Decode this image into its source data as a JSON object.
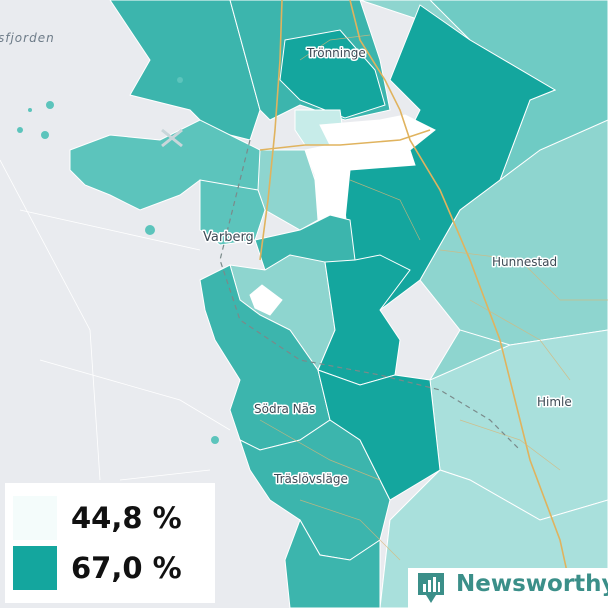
{
  "map": {
    "places": [
      {
        "id": "fjorden",
        "label": "sfjorden"
      },
      {
        "id": "tronninge",
        "label": "Trönninge"
      },
      {
        "id": "varberg",
        "label": "Varberg"
      },
      {
        "id": "hunnestad",
        "label": "Hunnestad"
      },
      {
        "id": "himle",
        "label": "Himle"
      },
      {
        "id": "sodra-nas",
        "label": "Södra Näs"
      },
      {
        "id": "traslovslage",
        "label": "Träslövsläge"
      }
    ],
    "colors": {
      "water": "#e9ebef",
      "region_dark": "#14a69e",
      "region_mid": "#3cb5ad",
      "region_light": "#5cc4bc",
      "region_pale": "#8ed5cf",
      "region_lighter": "#a9e0dc",
      "region_white": "#ffffff",
      "road": "#e0b35e",
      "railway": "#7a8a8a",
      "boundary": "#ffffff"
    }
  },
  "legend": {
    "min": {
      "label": "44,8 %",
      "color": "#f4fcfb"
    },
    "max": {
      "label": "67,0 %",
      "color": "#14a69e"
    }
  },
  "brand": {
    "name": "Newsworthy",
    "icon": "newsworthy-bar-chart-icon"
  }
}
